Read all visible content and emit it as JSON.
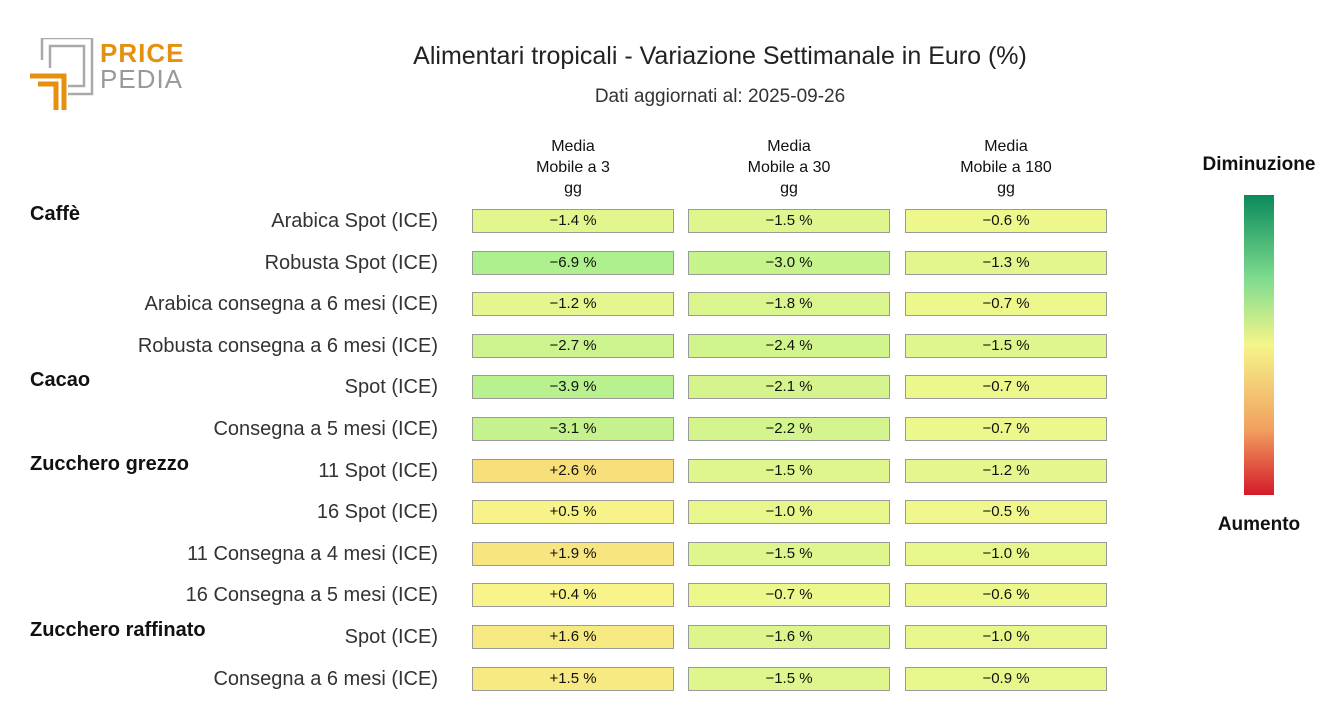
{
  "logo": {
    "word1": "PRICE",
    "word2": "PEDIA"
  },
  "chart_data": {
    "type": "heatmap",
    "title": "Alimentari tropicali - Variazione Settimanale in Euro (%)",
    "subtitle": "Dati aggiornati al: 2025-09-26",
    "columns": [
      {
        "line1": "Media",
        "line2": "Mobile a 3",
        "line3": "gg"
      },
      {
        "line1": "Media",
        "line2": "Mobile a 30",
        "line3": "gg"
      },
      {
        "line1": "Media",
        "line2": "Mobile a 180",
        "line3": "gg"
      }
    ],
    "groups": [
      {
        "name": "Caffè",
        "rows": [
          {
            "label": "Arabica Spot (ICE)",
            "values": [
              -1.4,
              -1.5,
              -0.6
            ],
            "texts": [
              "−1.4 %",
              "−1.5 %",
              "−0.6 %"
            ]
          },
          {
            "label": "Robusta Spot (ICE)",
            "values": [
              -6.9,
              -3.0,
              -1.3
            ],
            "texts": [
              "−6.9 %",
              "−3.0 %",
              "−1.3 %"
            ]
          },
          {
            "label": "Arabica consegna a 6 mesi (ICE)",
            "values": [
              -1.2,
              -1.8,
              -0.7
            ],
            "texts": [
              "−1.2 %",
              "−1.8 %",
              "−0.7 %"
            ]
          },
          {
            "label": "Robusta consegna a 6 mesi (ICE)",
            "values": [
              -2.7,
              -2.4,
              -1.5
            ],
            "texts": [
              "−2.7 %",
              "−2.4 %",
              "−1.5 %"
            ]
          }
        ]
      },
      {
        "name": "Cacao",
        "rows": [
          {
            "label": "Spot (ICE)",
            "values": [
              -3.9,
              -2.1,
              -0.7
            ],
            "texts": [
              "−3.9 %",
              "−2.1 %",
              "−0.7 %"
            ]
          },
          {
            "label": "Consegna a 5 mesi (ICE)",
            "values": [
              -3.1,
              -2.2,
              -0.7
            ],
            "texts": [
              "−3.1 %",
              "−2.2 %",
              "−0.7 %"
            ]
          }
        ]
      },
      {
        "name": "Zucchero grezzo",
        "rows": [
          {
            "label": "11 Spot (ICE)",
            "values": [
              2.6,
              -1.5,
              -1.2
            ],
            "texts": [
              "+2.6 %",
              "−1.5 %",
              "−1.2 %"
            ]
          },
          {
            "label": "16 Spot (ICE)",
            "values": [
              0.5,
              -1.0,
              -0.5
            ],
            "texts": [
              "+0.5 %",
              "−1.0 %",
              "−0.5 %"
            ]
          },
          {
            "label": "11 Consegna a 4 mesi (ICE)",
            "values": [
              1.9,
              -1.5,
              -1.0
            ],
            "texts": [
              "+1.9 %",
              "−1.5 %",
              "−1.0 %"
            ]
          },
          {
            "label": "16 Consegna a 5 mesi (ICE)",
            "values": [
              0.4,
              -0.7,
              -0.6
            ],
            "texts": [
              "+0.4 %",
              "−0.7 %",
              "−0.6 %"
            ]
          }
        ]
      },
      {
        "name": "Zucchero raffinato",
        "rows": [
          {
            "label": "Spot (ICE)",
            "values": [
              1.6,
              -1.6,
              -1.0
            ],
            "texts": [
              "+1.6 %",
              "−1.6 %",
              "−1.0 %"
            ]
          },
          {
            "label": "Consegna a 6 mesi (ICE)",
            "values": [
              1.5,
              -1.5,
              -0.9
            ],
            "texts": [
              "+1.5 %",
              "−1.5 %",
              "−0.9 %"
            ]
          }
        ]
      }
    ],
    "legend": {
      "top": "Diminuzione",
      "bottom": "Aumento"
    },
    "colors": {
      "negative_high": "#0a8a5a",
      "neutral": "#f5f58a",
      "positive_high": "#d41a2a"
    }
  }
}
